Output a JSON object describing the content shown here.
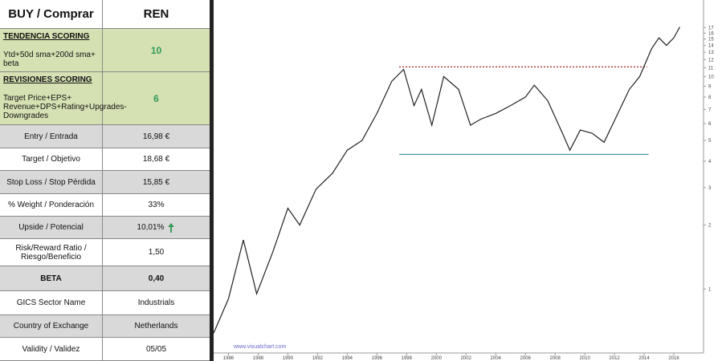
{
  "table": {
    "header": [
      "BUY / Comprar",
      "REN"
    ],
    "scoring": [
      {
        "title": "TENDENCIA SCORING",
        "detail": "Ytd+50d sma+200d  sma+ beta",
        "value": "10"
      },
      {
        "title": "REVISIONES SCORING",
        "detail": "Target Price+EPS+ Revenue+DPS+Rating+Upgrades-Downgrades",
        "value": "6"
      }
    ],
    "rows": [
      [
        "Entry / Entrada",
        "16,98 €"
      ],
      [
        "Target / Objetivo",
        "18,68 €"
      ],
      [
        "Stop Loss / Stop Pérdida",
        "15,85 €"
      ],
      [
        "% Weight / Ponderación",
        "33%"
      ],
      [
        "Upside / Potencial",
        "10,01%"
      ],
      [
        "Risk/Reward  Ratio / Riesgo/Beneficio",
        "1,50"
      ],
      [
        "BETA",
        "0,40"
      ],
      [
        "GICS Sector Name",
        "Industrials"
      ],
      [
        "Country of Exchange",
        "Netherlands"
      ],
      [
        "Validity / Validez",
        "05/05"
      ]
    ]
  },
  "chart_data": {
    "type": "line",
    "watermark": "www.visualchart.com",
    "x": [
      1985,
      1986,
      1987,
      1987.9,
      1989,
      1990,
      1990.8,
      1991.9,
      1993,
      1994,
      1995,
      1996,
      1997,
      1997.8,
      1998.5,
      1999,
      1999.7,
      2000.5,
      2001.5,
      2002.3,
      2003,
      2004,
      2005,
      2006,
      2006.6,
      2007.5,
      2008.5,
      2009,
      2009.7,
      2010.5,
      2011.3,
      2012,
      2013,
      2013.7,
      2014.5,
      2015,
      2015.5,
      2016,
      2016.4
    ],
    "series": [
      {
        "name": "REN",
        "color": "#222222",
        "values": [
          0.62,
          0.9,
          1.7,
          0.95,
          1.5,
          2.4,
          2,
          2.95,
          3.5,
          4.5,
          5,
          6.7,
          9.5,
          10.8,
          7.3,
          8.7,
          5.9,
          10,
          8.7,
          5.9,
          6.3,
          6.7,
          7.3,
          8,
          9.1,
          7.7,
          5.4,
          4.5,
          5.6,
          5.4,
          4.9,
          6.2,
          8.7,
          10,
          13.5,
          15.2,
          14,
          15.2,
          17.1
        ]
      }
    ],
    "hlines": [
      {
        "value": 11.1,
        "x": [
          1997.5,
          2014.2
        ],
        "color": "#a02020",
        "dash": true
      },
      {
        "value": 4.3,
        "x": [
          1997.5,
          2014.3
        ],
        "color": "#3a8fa0",
        "dash": false
      }
    ],
    "xlim": [
      1985,
      2018
    ],
    "xticks": [
      1986,
      1988,
      1990,
      1992,
      1994,
      1996,
      1998,
      2000,
      2002,
      2004,
      2006,
      2008,
      2010,
      2012,
      2014,
      2016
    ],
    "ylim": [
      0.5,
      21
    ],
    "yticks": [
      1,
      2,
      3,
      4,
      5,
      6,
      7,
      8,
      9,
      10,
      11,
      12,
      13,
      14,
      15,
      16,
      17
    ],
    "log_y": true
  }
}
